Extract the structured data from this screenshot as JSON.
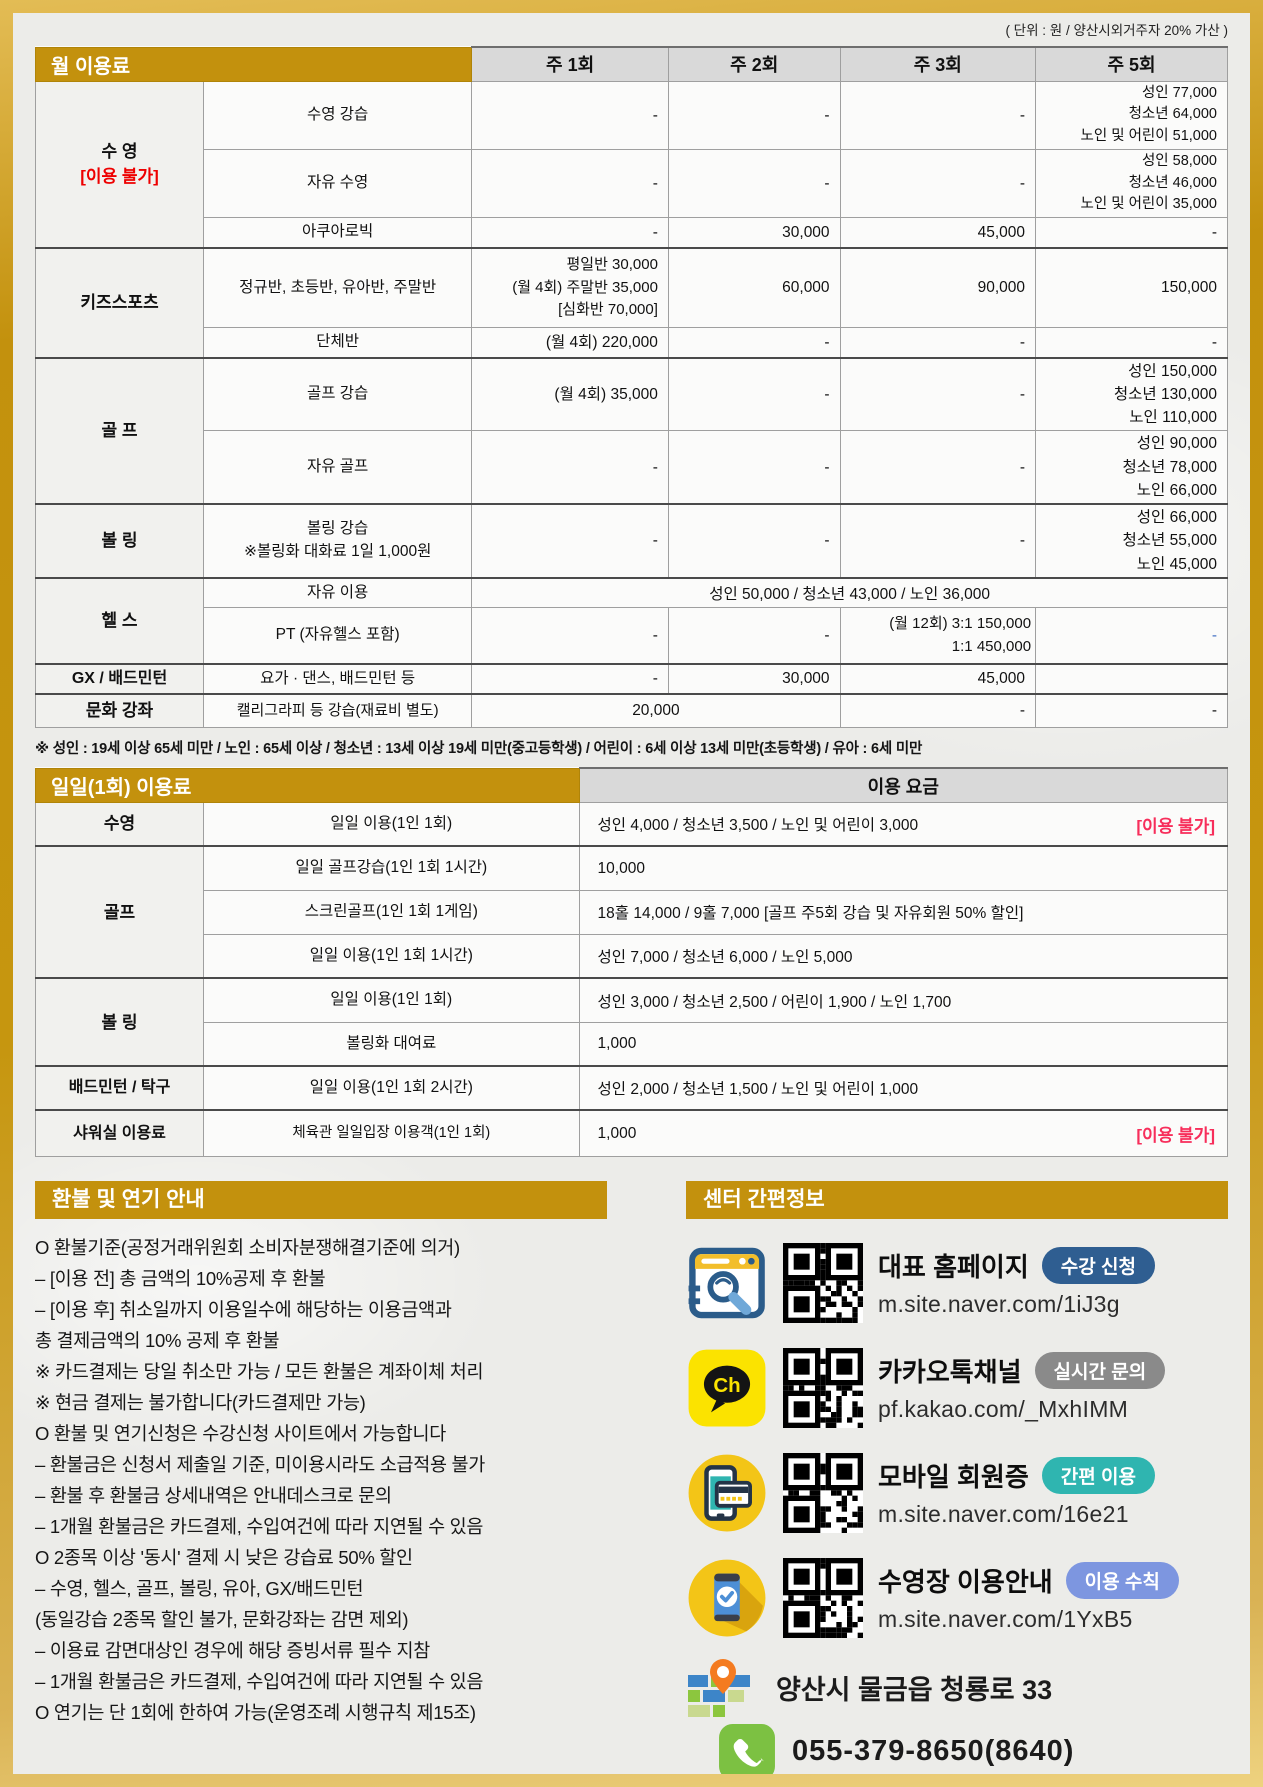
{
  "unit_note": "( 단위 : 원 / 양산시외거주자 20% 가산 )",
  "colors": {
    "gold": "#C3910D",
    "red": "#EE0000",
    "pink": "#F72E5B",
    "blue_dash": "#4472C4",
    "header_gray": "#D9D9D9"
  },
  "monthly": {
    "title": "월 이용료",
    "col1": "주 1회",
    "col2": "주 2회",
    "col3": "주 3회",
    "col4": "주 5회",
    "swim": {
      "group": "수 영",
      "note": "[이용 불가]",
      "lesson": {
        "label": "수영 강습",
        "w1": "-",
        "w2": "-",
        "w3": "-",
        "w5": [
          "성인  77,000",
          "청소년  64,000",
          "노인 및 어린이  51,000"
        ]
      },
      "free": {
        "label": "자유 수영",
        "w1": "-",
        "w2": "-",
        "w3": "-",
        "w5": [
          "성인  58,000",
          "청소년  46,000",
          "노인 및 어린이  35,000"
        ]
      },
      "aqua": {
        "label": "아쿠아로빅",
        "w1": "-",
        "w2": "30,000",
        "w3": "45,000",
        "w5": "-"
      }
    },
    "kids": {
      "group": "키즈스포츠",
      "regular": {
        "label": "정규반, 초등반, 유아반, 주말반",
        "w1": [
          "평일반  30,000",
          "(월 4회)  주말반  35,000",
          "[심화반 70,000]"
        ],
        "w2": "60,000",
        "w3": "90,000",
        "w5": "150,000"
      },
      "groupclass": {
        "label": "단체반",
        "w1": "(월 4회) 220,000",
        "w2": "-",
        "w3": "-",
        "w5": "-"
      }
    },
    "golf": {
      "group": "골 프",
      "lesson": {
        "label": "골프 강습",
        "w1": "(월 4회) 35,000",
        "w2": "-",
        "w3": "-",
        "w5": [
          "성인  150,000",
          "청소년  130,000",
          "노인  110,000"
        ]
      },
      "free": {
        "label": "자유 골프",
        "w1": "-",
        "w2": "-",
        "w3": "-",
        "w5": [
          "성인  90,000",
          "청소년  78,000",
          "노인  66,000"
        ]
      }
    },
    "bowling": {
      "group": "볼 링",
      "lesson": {
        "label": [
          "볼링 강습",
          "※볼링화 대화료 1일 1,000원"
        ],
        "w1": "-",
        "w2": "-",
        "w3": "-",
        "w5": [
          "성인  66,000",
          "청소년  55,000",
          "노인  45,000"
        ]
      }
    },
    "health": {
      "group": "헬 스",
      "free": {
        "label": "자유 이용",
        "all": "성인 50,000   /   청소년 43,000   /   노인 36,000"
      },
      "pt": {
        "label": "PT (자유헬스 포함)",
        "w1": "-",
        "w2": "-",
        "w3": [
          "(월 12회) 3:1  150,000",
          "1:1  450,000"
        ],
        "w5": "-"
      }
    },
    "gx": {
      "group": "GX / 배드민턴",
      "row": {
        "label": "요가 · 댄스, 배드민턴 등",
        "w1": "-",
        "w2": "30,000",
        "w3": "45,000",
        "w5": ""
      }
    },
    "culture": {
      "group": "문화 강좌",
      "row": {
        "label": "캘리그라피 등 강습(재료비 별도)",
        "w12": "20,000",
        "w3": "-",
        "w5": "-"
      }
    }
  },
  "footnote": "※ 성인 : 19세 이상 65세 미만 / 노인 : 65세 이상 / 청소년 : 13세 이상 19세 미만(중고등학생) / 어린이 : 6세 이상 13세 미만(초등학생) / 유아 : 6세 미만",
  "daily": {
    "title": "일일(1회) 이용료",
    "column": "이용 요금",
    "swim": {
      "group": "수영",
      "label": "일일 이용(1인 1회)",
      "value": "성인 4,000   /   청소년 3,500   /   노인 및 어린이 3,000",
      "tag": "[이용 불가]"
    },
    "golf": {
      "group": "골프",
      "r1": {
        "label": "일일 골프강습(1인 1회 1시간)",
        "value": "10,000"
      },
      "r2": {
        "label": "스크린골프(1인 1회 1게임)",
        "value": "18홀 14,000   /   9홀 7,000  [골프 주5회 강습 및 자유회원 50% 할인]"
      },
      "r3": {
        "label": "일일 이용(1인 1회 1시간)",
        "value": "성인 7,000   /   청소년 6,000   /    노인 5,000"
      }
    },
    "bowling": {
      "group": "볼 링",
      "r1": {
        "label": "일일 이용(1인 1회)",
        "value": "성인 3,000   /   청소년 2,500   /   어린이 1,900   /   노인 1,700"
      },
      "r2": {
        "label": "볼링화 대여료",
        "value": "1,000"
      }
    },
    "badminton": {
      "group": "배드민턴 / 탁구",
      "label": "일일 이용(1인 1회 2시간)",
      "value": "성인 2,000   /   청소년 1,500   /   노인 및 어린이 1,000"
    },
    "shower": {
      "group": "샤워실 이용료",
      "label": "체육관 일일입장 이용객(1인 1회)",
      "value": "1,000",
      "tag": "[이용 불가]"
    }
  },
  "refund": {
    "title": "환불 및 연기 안내",
    "lines": [
      "O 환불기준(공정거래위원회 소비자분쟁해결기준에 의거)",
      " – [이용 전] 총 금액의 10%공제 후 환불",
      " – [이용 후] 취소일까지 이용일수에 해당하는 이용금액과",
      "            총 결제금액의 10% 공제 후 환불",
      "※ 카드결제는 당일 취소만 가능 / 모든 환불은 계좌이체 처리",
      "※ 현금 결제는 불가합니다(카드결제만 가능)",
      "O 환불 및 연기신청은 수강신청 사이트에서 가능합니다",
      " – 환불금은 신청서 제출일 기준, 미이용시라도 소급적용 불가",
      " – 환불 후 환불금 상세내역은 안내데스크로 문의",
      " – 1개월 환불금은 카드결제, 수입여건에 따라 지연될 수 있음",
      "O 2종목 이상 '동시' 결제 시 낮은 강습료 50% 할인",
      " – 수영, 헬스, 골프, 볼링, 유아, GX/배드민턴",
      "   (동일강습 2종목 할인 불가, 문화강좌는 감면 제외)",
      " – 이용료 감면대상인 경우에 해당 증빙서류 필수 지참",
      " – 1개월 환불금은 카드결제, 수입여건에 따라 지연될 수 있음",
      "O 연기는 단 1회에 한하여 가능(운영조례 시행규칙 제15조)"
    ]
  },
  "info": {
    "title": "센터 간편정보",
    "items": [
      {
        "icon": "homepage-browser-icon",
        "name": "대표 홈페이지",
        "badge": "수강 신청",
        "badge_color": "#2F5E91",
        "url": "m.site.naver.com/1iJ3g"
      },
      {
        "icon": "kakao-channel-icon",
        "name": "카카오톡채널",
        "badge": "실시간 문의",
        "badge_color": "#8A8A8A",
        "url": "pf.kakao.com/_MxhIMM"
      },
      {
        "icon": "mobile-membership-icon",
        "name": "모바일 회원증",
        "badge": "간편 이용",
        "badge_color": "#2FB5B0",
        "url": "m.site.naver.com/16e21"
      },
      {
        "icon": "pool-guide-icon",
        "name": "수영장 이용안내",
        "badge": "이용 수칙",
        "badge_color": "#7D96E0",
        "url": "m.site.naver.com/1YxB5"
      }
    ],
    "address": "양산시 물금읍 청룡로 33",
    "phone": "055-379-8650(8640)"
  }
}
